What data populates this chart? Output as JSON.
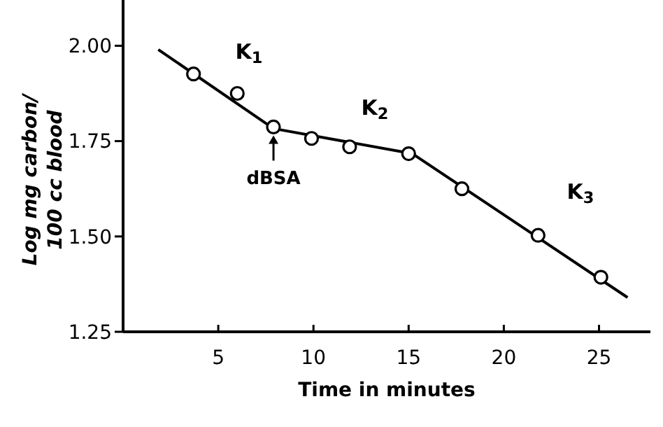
{
  "chart_data": {
    "type": "scatter",
    "xlabel": "Time in minutes",
    "ylabel": "Log mg carbon/\n100 cc blood",
    "xlim": [
      0,
      27.7
    ],
    "ylim": [
      1.25,
      2.12
    ],
    "xticks": [
      5,
      10,
      15,
      20,
      25
    ],
    "yticks": [
      {
        "value": 1.25,
        "label": "1.25"
      },
      {
        "value": 1.5,
        "label": "1.50"
      },
      {
        "value": 1.75,
        "label": "1.75"
      },
      {
        "value": 2,
        "label": "2.00"
      }
    ],
    "grid": false,
    "series": [
      {
        "type": "line",
        "color": "#000000",
        "marker": "none",
        "x": [
          1.85,
          7.9,
          15.2,
          26.5
        ],
        "values": [
          1.99,
          1.783,
          1.717,
          1.34
        ]
      },
      {
        "color": "#000000",
        "marker": "circle",
        "x": [
          3.7,
          6.0,
          7.9,
          9.9,
          11.9,
          15.0,
          17.8,
          21.8,
          25.1
        ],
        "values": [
          1.926,
          1.875,
          1.787,
          1.757,
          1.735,
          1.717,
          1.625,
          1.503,
          1.393
        ]
      }
    ],
    "annotations": [
      "K$_{1}$",
      "K$_{2}$",
      "K$_{3}$",
      {
        "text": "dBSA",
        "x": 7.9,
        "y": 1.787
      }
    ]
  }
}
